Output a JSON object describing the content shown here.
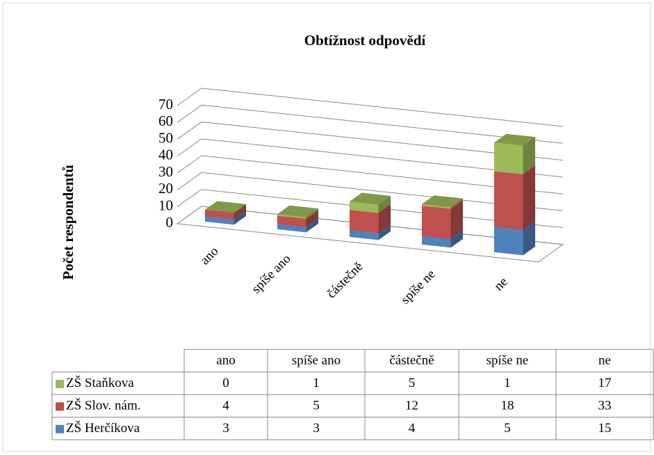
{
  "chart_data": {
    "type": "bar3d_stacked",
    "title": "Obtížnost odpovědí",
    "y_label": "Počet respondentů",
    "categories": [
      "ano",
      "spíše ano",
      "částečně",
      "spíše ne",
      "ne"
    ],
    "series": [
      {
        "name": "ZŠ Herčíkova",
        "color": "#4f81bd",
        "values": [
          3,
          3,
          4,
          5,
          15
        ]
      },
      {
        "name": "ZŠ Slov. nám.",
        "color": "#c0504d",
        "values": [
          4,
          5,
          12,
          18,
          33
        ]
      },
      {
        "name": "ZŠ Staňkova",
        "color": "#9bbb59",
        "values": [
          0,
          1,
          5,
          1,
          17
        ]
      }
    ],
    "ylim": [
      0,
      70
    ],
    "yticks": [
      0,
      10,
      20,
      30,
      40,
      50,
      60,
      70
    ],
    "grid": true
  }
}
